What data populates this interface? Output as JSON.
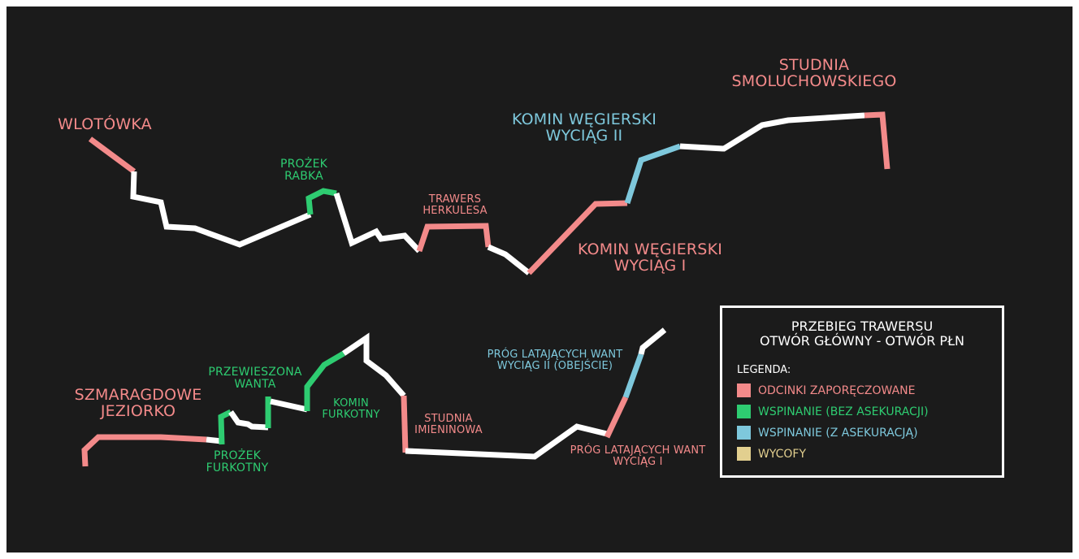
{
  "colors": {
    "background": "#1b1b1b",
    "passage": "#ffffff",
    "fixed_rope": "#f38a8a",
    "climb_no_belay": "#2ecc71",
    "climb_belay": "#7ec8dc",
    "retreat": "#e2cf8f"
  },
  "labels": {
    "wlotowka": "WLOTÓWKA",
    "prozek_rabka": [
      "PROŻEK",
      "RABKA"
    ],
    "trawers_herkulesa": [
      "TRAWERS",
      "HERKULESA"
    ],
    "komin_wegierski_2": [
      "KOMIN WĘGIERSKI",
      "WYCIĄG II"
    ],
    "komin_wegierski_1": [
      "KOMIN WĘGIERSKI",
      "WYCIĄG I"
    ],
    "studnia_smoluchowskiego": [
      "STUDNIA",
      "SMOLUCHOWSKIEGO"
    ],
    "szmaragdowe_jeziorko": [
      "SZMARAGDOWE",
      "JEZIORKO"
    ],
    "przewieszona_wanta": [
      "PRZEWIESZONA",
      "WANTA"
    ],
    "prozek_furkotny": [
      "PROŻEK",
      "FURKOTNY"
    ],
    "komin_furkotny": [
      "KOMIN",
      "FURKOTNY"
    ],
    "studnia_imieninowa": [
      "STUDNIA",
      "IMIENINOWA"
    ],
    "prog_2": [
      "PRÓG LATAJĄCYCH WANT",
      "WYCIĄG II (OBEJŚCIE)"
    ],
    "prog_1": [
      "PRÓG LATAJĄCYCH WANT",
      "WYCIĄG I"
    ]
  },
  "legend": {
    "title": [
      "PRZEBIEG TRAWERSU",
      "OTWÓR GŁÓWNY - OTWÓR PŁN"
    ],
    "heading": "LEGENDA:",
    "items": [
      {
        "label": "ODCINKI ZAPORĘCZOWANE",
        "color": "#f38a8a"
      },
      {
        "label": "WSPINANIE (BEZ ASEKURACJI)",
        "color": "#2ecc71"
      },
      {
        "label": "WSPINANIE (Z ASEKURACJĄ)",
        "color": "#7ec8dc"
      },
      {
        "label": "WYCOFY",
        "color": "#e2cf8f"
      }
    ]
  }
}
